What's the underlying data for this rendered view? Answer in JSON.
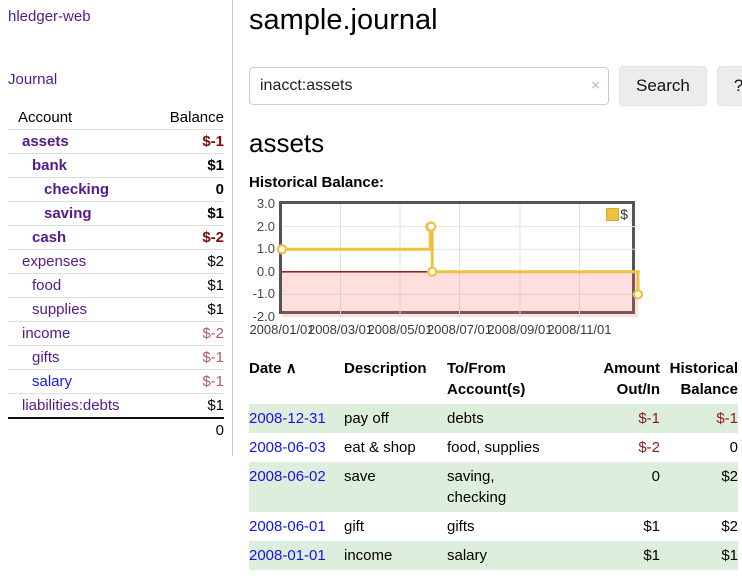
{
  "app_title": "hledger-web",
  "sidebar": {
    "journal_link": "Journal",
    "accounts": {
      "header": {
        "account": "Account",
        "balance": "Balance"
      },
      "rows": [
        {
          "name": "assets",
          "balance": "$-1"
        },
        {
          "name": "bank",
          "balance": "$1"
        },
        {
          "name": "checking",
          "balance": "0"
        },
        {
          "name": "saving",
          "balance": "$1"
        },
        {
          "name": "cash",
          "balance": "$-2"
        },
        {
          "name": "expenses",
          "balance": "$2"
        },
        {
          "name": "food",
          "balance": "$1"
        },
        {
          "name": "supplies",
          "balance": "$1"
        },
        {
          "name": "income",
          "balance": "$-2"
        },
        {
          "name": "gifts",
          "balance": "$-1"
        },
        {
          "name": "salary",
          "balance": "$-1"
        },
        {
          "name": "liabilities:debts",
          "balance": "$1"
        }
      ],
      "total": "0"
    }
  },
  "main": {
    "title": "sample.journal",
    "search": {
      "value": "inacct:assets",
      "clear_icon": "×",
      "search_button": "Search",
      "help_button": "?"
    },
    "account_heading": "assets",
    "chart_heading": "Historical Balance:"
  },
  "register": {
    "headers": {
      "date": "Date",
      "sort_icon": "∧",
      "description": "Description",
      "accounts": "To/From Account(s)",
      "amount": "Amount Out/In",
      "balance": "Historical Balance"
    },
    "rows": [
      {
        "date": "2008-12-31",
        "description": "pay off",
        "accounts": "debts",
        "amount": "$-1",
        "balance": "$-1"
      },
      {
        "date": "2008-06-03",
        "description": "eat & shop",
        "accounts": "food, supplies",
        "amount": "$-2",
        "balance": "0"
      },
      {
        "date": "2008-06-02",
        "description": "save",
        "accounts": "saving, checking",
        "amount": "0",
        "balance": "$2"
      },
      {
        "date": "2008-06-01",
        "description": "gift",
        "accounts": "gifts",
        "amount": "$1",
        "balance": "$2"
      },
      {
        "date": "2008-01-01",
        "description": "income",
        "accounts": "salary",
        "amount": "$1",
        "balance": "$1"
      }
    ]
  },
  "chart_data": {
    "type": "line",
    "step": "after",
    "title": "Historical Balance:",
    "xlim": [
      "2008-01-01",
      "2008-12-31"
    ],
    "ylim": [
      -2,
      3
    ],
    "grid": true,
    "legend": {
      "label": "$",
      "position": "top-right"
    },
    "series": [
      {
        "name": "$",
        "color": "#edc240",
        "points": [
          [
            "2008-01-01",
            1.0
          ],
          [
            "2008-06-01",
            2.0
          ],
          [
            "2008-06-02",
            2.0
          ],
          [
            "2008-06-03",
            0.0
          ],
          [
            "2008-12-31",
            -1.0
          ]
        ]
      }
    ],
    "y_ticks": [
      {
        "value": 3,
        "label": "3.0"
      },
      {
        "value": 2,
        "label": "2.0"
      },
      {
        "value": 1,
        "label": "1.0"
      },
      {
        "value": 0,
        "label": "0.0"
      },
      {
        "value": -1,
        "label": "-1.0"
      },
      {
        "value": -2,
        "label": "-2.0"
      }
    ],
    "x_ticks": [
      {
        "date": "2008-01-01",
        "label": "2008/01/01"
      },
      {
        "date": "2008-03-01",
        "label": "2008/03/01"
      },
      {
        "date": "2008-05-01",
        "label": "2008/05/01"
      },
      {
        "date": "2008-07-01",
        "label": "2008/07/01"
      },
      {
        "date": "2008-09-01",
        "label": "2008/09/01"
      },
      {
        "date": "2008-11-01",
        "label": "2008/11/01"
      }
    ],
    "negative_region_color": "#ff6b6b",
    "zero_line_color": "#8b0000"
  }
}
